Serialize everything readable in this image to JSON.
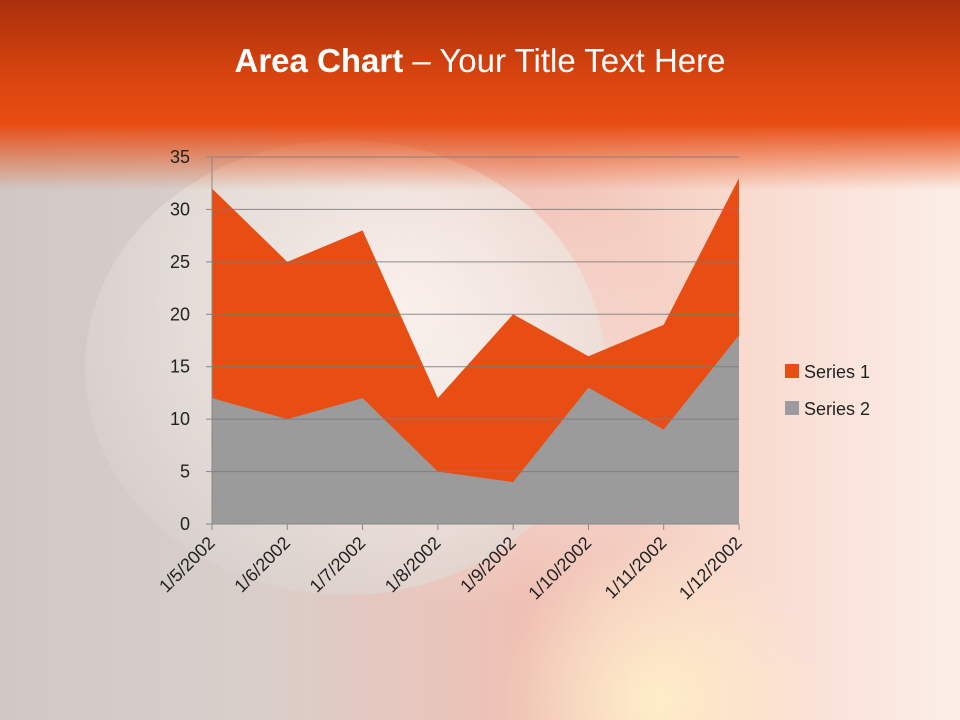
{
  "slide": {
    "title_bold": "Area Chart",
    "title_rest": " – Your Title Text Here"
  },
  "chart_data": {
    "type": "area",
    "title": "",
    "categories": [
      "1/5/2002",
      "1/6/2002",
      "1/7/2002",
      "1/8/2002",
      "1/9/2002",
      "1/10/2002",
      "1/11/2002",
      "1/12/2002"
    ],
    "series": [
      {
        "name": "Series 1",
        "values": [
          32,
          25,
          28,
          12,
          20,
          16,
          19,
          33
        ],
        "color": "#e84e14"
      },
      {
        "name": "Series 2",
        "values": [
          12,
          10,
          12,
          5,
          4,
          13,
          9,
          18
        ],
        "color": "#9b9b9b"
      }
    ],
    "ylim": [
      0,
      35
    ],
    "yticks": [
      0,
      5,
      10,
      15,
      20,
      25,
      30,
      35
    ],
    "grid": true,
    "legend": "right"
  }
}
